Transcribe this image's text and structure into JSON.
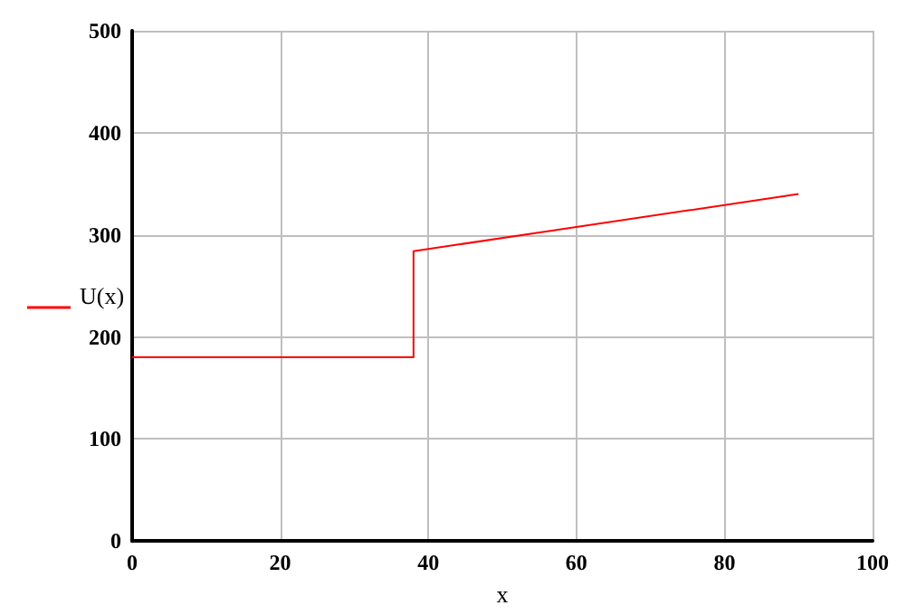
{
  "chart_data": {
    "type": "line",
    "xlabel": "x",
    "x": [
      0,
      38,
      38,
      90
    ],
    "series": [
      {
        "name": "U(x)",
        "color": "#ff0000",
        "values": [
          180,
          180,
          284,
          340
        ]
      }
    ],
    "xlim": [
      0,
      100
    ],
    "xticks": [
      0,
      20,
      40,
      60,
      80,
      100
    ],
    "ylim": [
      0,
      500
    ],
    "yticks": [
      0,
      100,
      200,
      300,
      400,
      500
    ],
    "grid": true,
    "legend": "left",
    "marker": "none",
    "line_style": "solid"
  }
}
